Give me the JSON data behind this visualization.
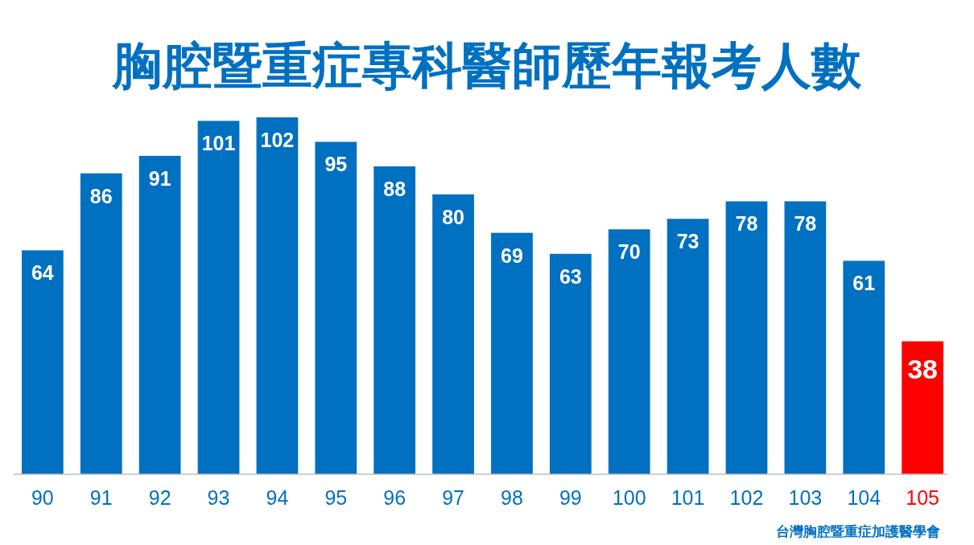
{
  "chart_data": {
    "type": "bar",
    "title": "胸腔暨重症專科醫師歷年報考人數",
    "categories": [
      "90",
      "91",
      "92",
      "93",
      "94",
      "95",
      "96",
      "97",
      "98",
      "99",
      "100",
      "101",
      "102",
      "103",
      "104",
      "105"
    ],
    "values": [
      64,
      86,
      91,
      101,
      102,
      95,
      88,
      80,
      69,
      63,
      70,
      73,
      78,
      78,
      61,
      38
    ],
    "colors": [
      "#0070c0",
      "#0070c0",
      "#0070c0",
      "#0070c0",
      "#0070c0",
      "#0070c0",
      "#0070c0",
      "#0070c0",
      "#0070c0",
      "#0070c0",
      "#0070c0",
      "#0070c0",
      "#0070c0",
      "#0070c0",
      "#0070c0",
      "#ff0000"
    ],
    "data_labels": true,
    "annotations": [
      "台灣胸腔暨重症加護醫學會"
    ]
  }
}
